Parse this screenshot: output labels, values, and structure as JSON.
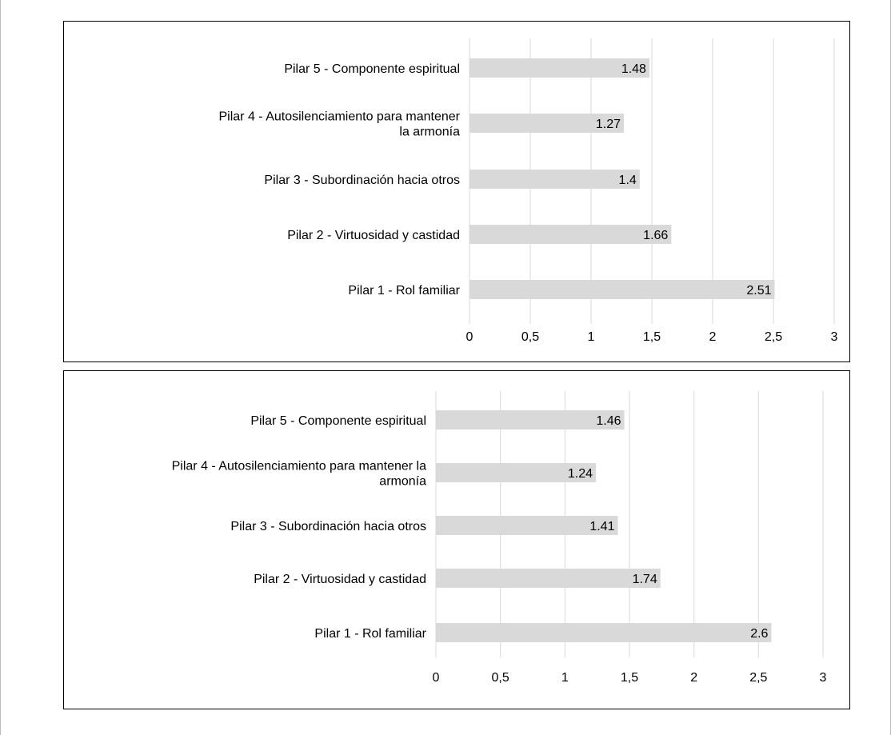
{
  "chart_data": [
    {
      "type": "bar",
      "orientation": "horizontal",
      "categories": [
        "Pilar 5 - Componente espiritual",
        "Pilar 4 - Autosilenciamiento para mantener la armonía",
        "Pilar 3 - Subordinación hacia otros",
        "Pilar 2 - Virtuosidad y castidad",
        "Pilar 1 - Rol familiar"
      ],
      "category_lines": [
        [
          "Pilar 5 - Componente espiritual"
        ],
        [
          "Pilar 4 - Autosilenciamiento para mantener",
          "la armonía"
        ],
        [
          "Pilar 3 - Subordinación hacia otros"
        ],
        [
          "Pilar 2 - Virtuosidad y castidad"
        ],
        [
          "Pilar 1 - Rol familiar"
        ]
      ],
      "values": [
        1.48,
        1.27,
        1.4,
        1.66,
        2.51
      ],
      "data_labels": [
        "1.48",
        "1.27",
        "1.4",
        "1.66",
        "2.51"
      ],
      "xticks": [
        "0",
        "0,5",
        "1",
        "1,5",
        "2",
        "2,5",
        "3"
      ],
      "xlim": [
        0,
        3
      ],
      "grid": true,
      "bar_color": "#d9d9d9",
      "grid_color": "#d9d9d9"
    },
    {
      "type": "bar",
      "orientation": "horizontal",
      "categories": [
        "Pilar 5 - Componente espiritual",
        "Pilar 4 - Autosilenciamiento para mantener la armonía",
        "Pilar 3 - Subordinación hacia otros",
        "Pilar 2 - Virtuosidad y castidad",
        "Pilar 1 - Rol familiar"
      ],
      "category_lines": [
        [
          "Pilar 5 - Componente espiritual"
        ],
        [
          "Pilar 4 - Autosilenciamiento para mantener la",
          "armonía"
        ],
        [
          "Pilar 3 - Subordinación hacia otros"
        ],
        [
          "Pilar 2 - Virtuosidad y castidad"
        ],
        [
          "Pilar 1 - Rol familiar"
        ]
      ],
      "values": [
        1.46,
        1.24,
        1.41,
        1.74,
        2.6
      ],
      "data_labels": [
        "1.46",
        "1.24",
        "1.41",
        "1.74",
        "2.6"
      ],
      "xticks": [
        "0",
        "0,5",
        "1",
        "1,5",
        "2",
        "2,5",
        "3"
      ],
      "xlim": [
        0,
        3
      ],
      "grid": true,
      "bar_color": "#d9d9d9",
      "grid_color": "#d9d9d9"
    }
  ]
}
